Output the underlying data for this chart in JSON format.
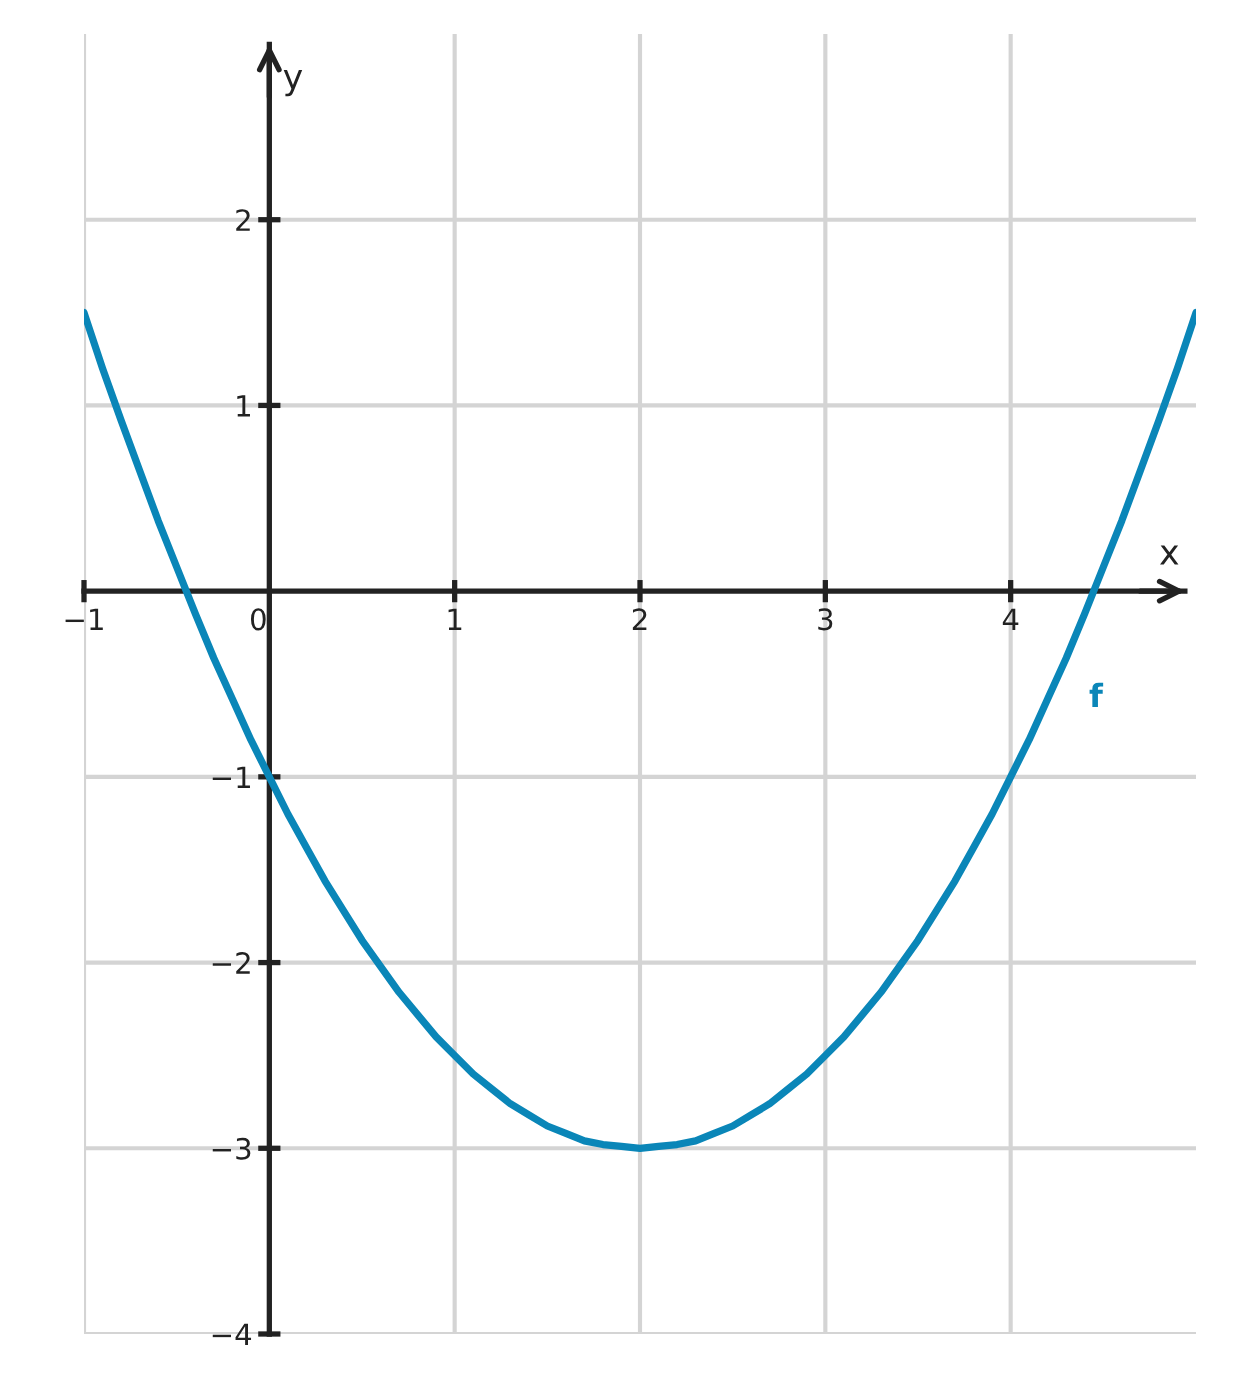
{
  "chart_data": {
    "type": "line",
    "xlabel": "x",
    "ylabel": "y",
    "series": [
      {
        "name": "f",
        "color": "#0a86b8",
        "x": [
          -1,
          -0.9,
          -0.8,
          -0.7,
          -0.6,
          -0.5,
          -0.4,
          -0.3,
          -0.2,
          -0.1,
          0,
          0.1,
          0.2,
          0.3,
          0.4,
          0.5,
          0.6,
          0.7,
          0.8,
          0.9,
          1,
          1.1,
          1.2,
          1.3,
          1.4,
          1.5,
          1.6,
          1.7,
          1.8,
          1.9,
          2,
          2.1,
          2.2,
          2.3,
          2.4,
          2.5,
          2.6,
          2.7,
          2.8,
          2.9,
          3,
          3.1,
          3.2,
          3.3,
          3.4,
          3.5,
          3.6,
          3.7,
          3.8,
          3.9,
          4,
          4.1,
          4.2,
          4.3,
          4.4,
          4.5,
          4.6,
          4.7,
          4.8,
          4.9,
          5
        ],
        "values": [
          1.5,
          1.2,
          0.92,
          0.65,
          0.38,
          0.13,
          -0.12,
          -0.36,
          -0.58,
          -0.8,
          -1,
          -1.2,
          -1.38,
          -1.56,
          -1.72,
          -1.88,
          -2.02,
          -2.16,
          -2.28,
          -2.4,
          -2.5,
          -2.6,
          -2.68,
          -2.76,
          -2.82,
          -2.88,
          -2.92,
          -2.96,
          -2.98,
          -2.99,
          -3,
          -2.99,
          -2.98,
          -2.96,
          -2.92,
          -2.88,
          -2.82,
          -2.76,
          -2.68,
          -2.6,
          -2.5,
          -2.4,
          -2.28,
          -2.16,
          -2.02,
          -1.88,
          -1.72,
          -1.56,
          -1.38,
          -1.2,
          -1,
          -0.8,
          -0.58,
          -0.36,
          -0.12,
          0.13,
          0.38,
          0.65,
          0.92,
          1.2,
          1.5
        ]
      }
    ],
    "xlim": [
      -1,
      5
    ],
    "ylim": [
      -4,
      3
    ],
    "xticks": [
      {
        "value": -1,
        "label": "−1"
      },
      0,
      1,
      2,
      3,
      4
    ],
    "yticks": [
      {
        "value": -4,
        "label": "−4"
      },
      {
        "value": -3,
        "label": "−3"
      },
      {
        "value": -2,
        "label": "−2"
      },
      {
        "value": -1,
        "label": "−1"
      },
      1,
      2
    ],
    "grid": true,
    "marker": "none",
    "line_style": "solid"
  }
}
